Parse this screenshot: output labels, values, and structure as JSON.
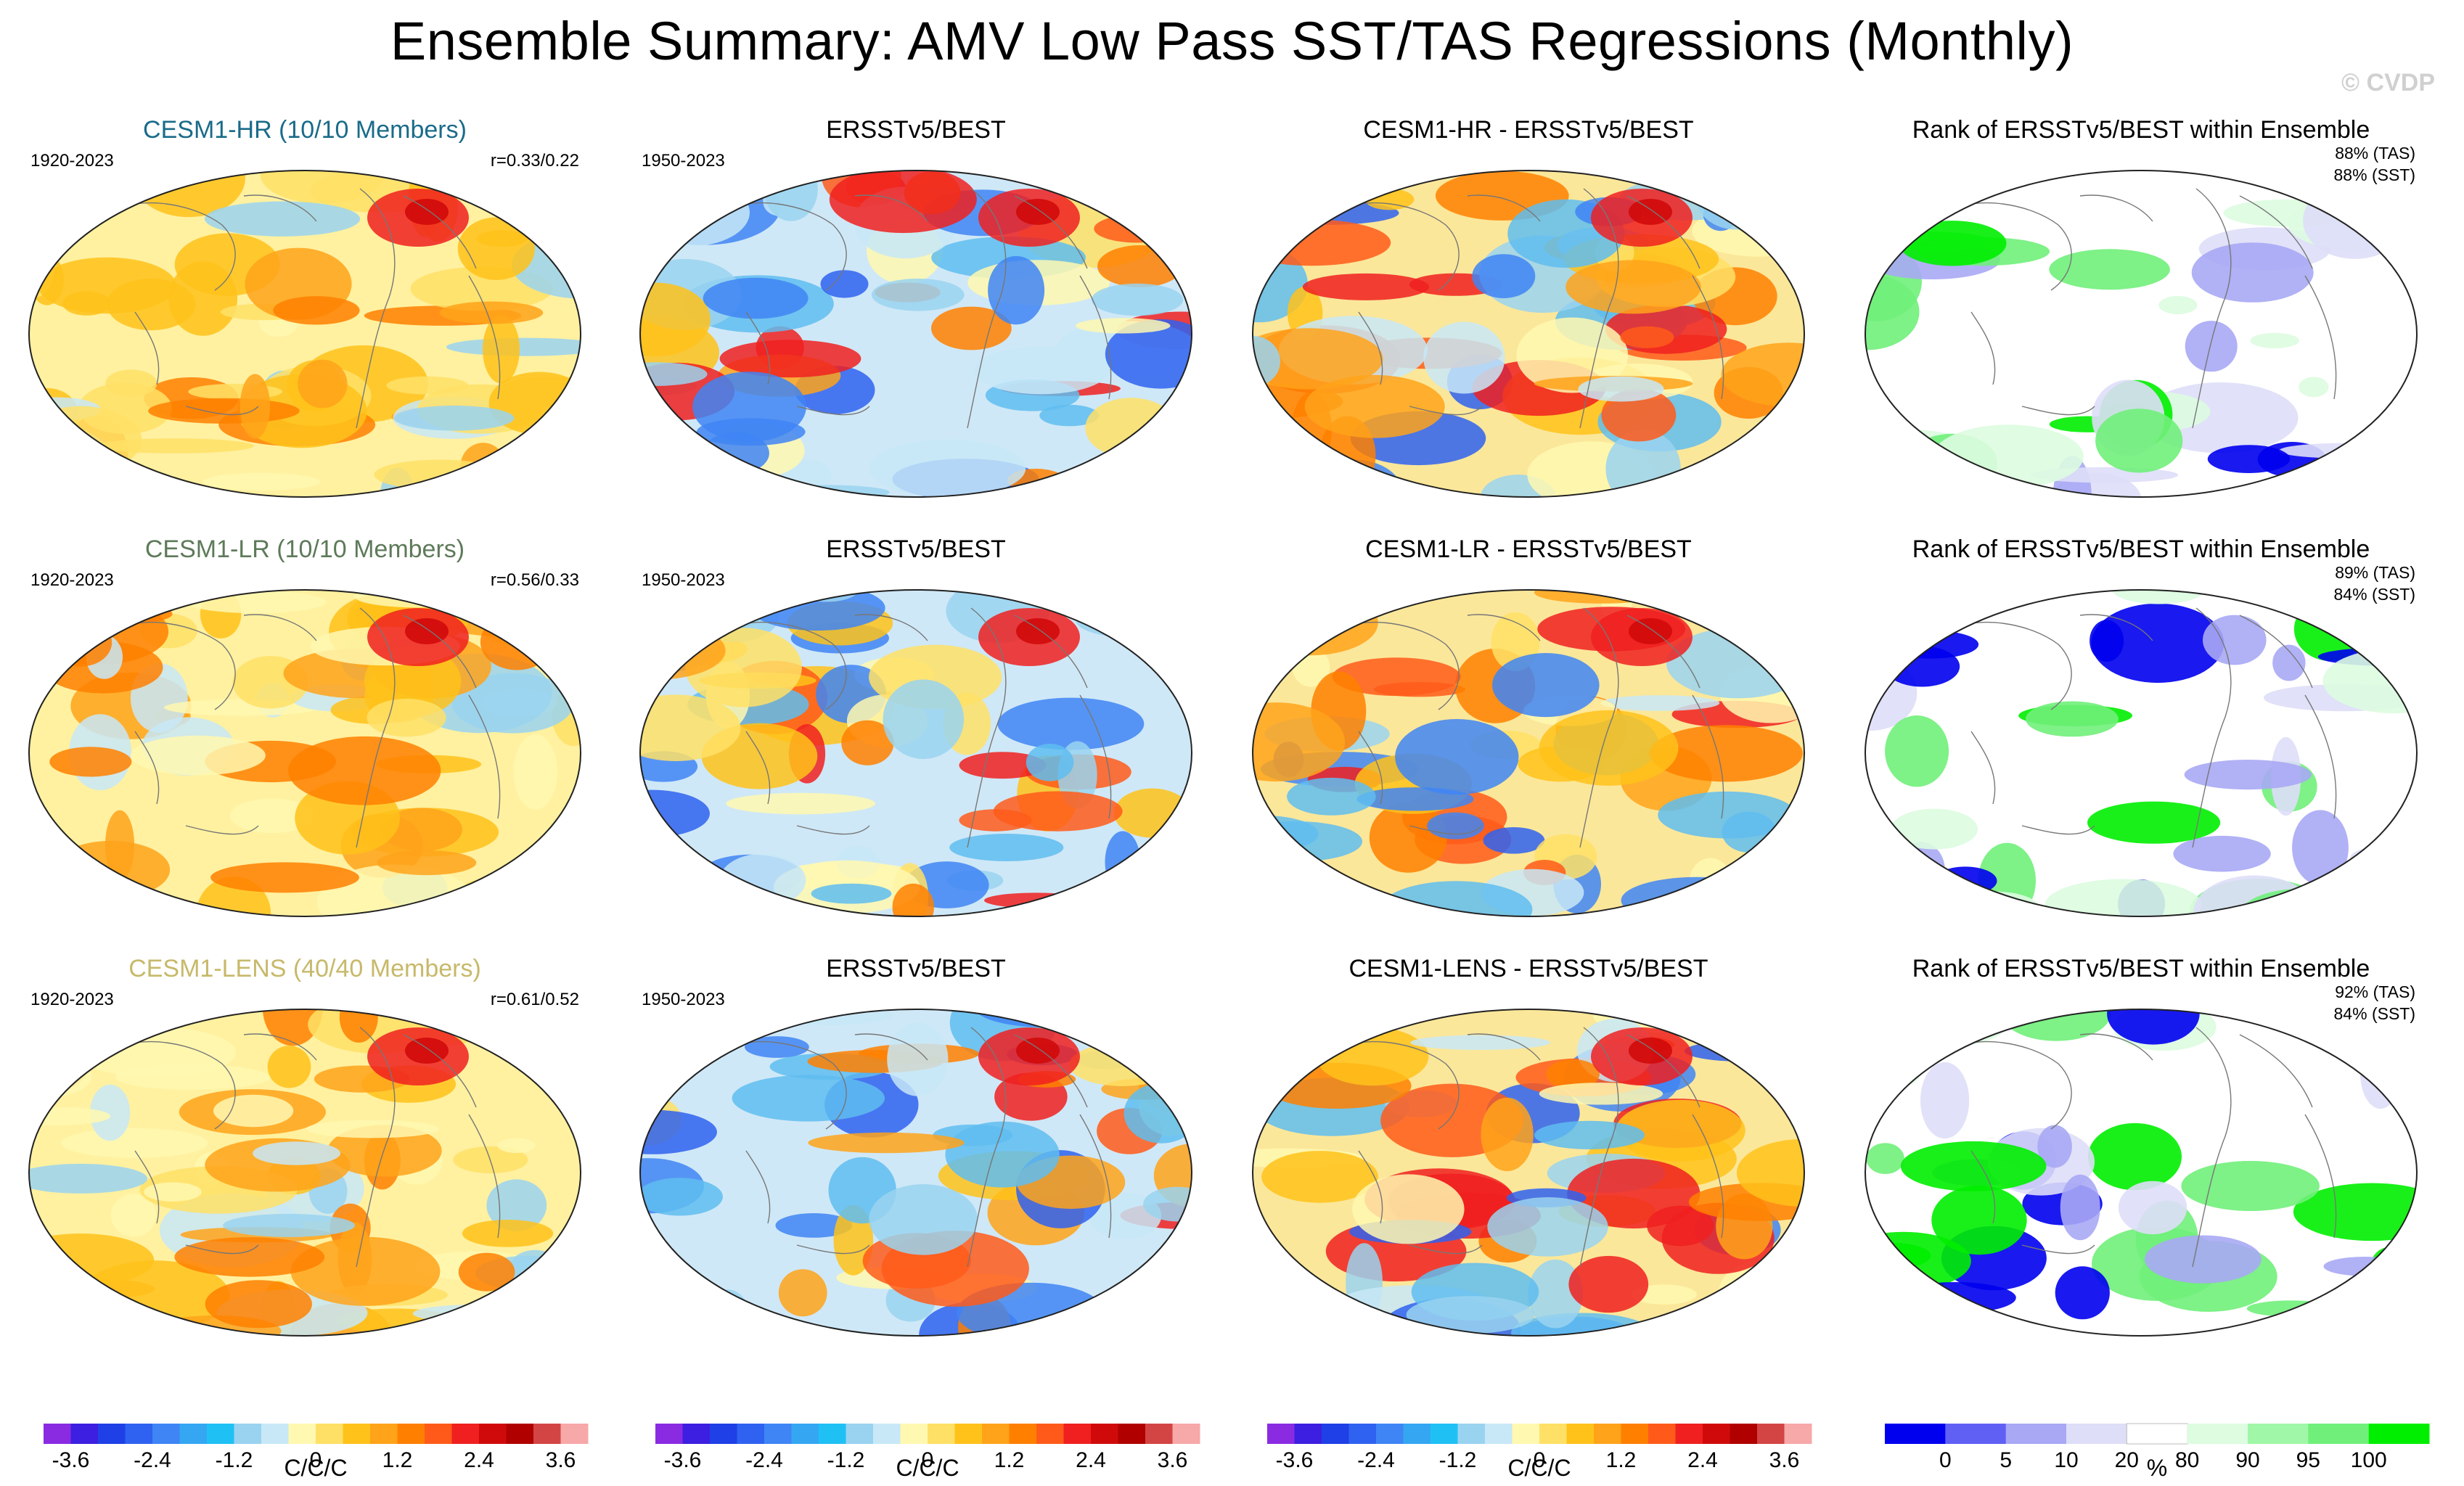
{
  "title": "Ensemble Summary: AMV Low Pass SST/TAS Regressions (Monthly)",
  "watermark": "© CVDP",
  "rows": [
    {
      "model": {
        "title": "CESM1-HR (10/10 Members)",
        "title_color": "#1a6b8a",
        "period": "1920-2023",
        "corr": "r=0.33/0.22"
      },
      "obs": {
        "title": "ERSSTv5/BEST",
        "period": "1950-2023"
      },
      "diff": {
        "title": "CESM1-HR - ERSSTv5/BEST"
      },
      "rank": {
        "title": "Rank of ERSSTv5/BEST within Ensemble",
        "tas": "88% (TAS)",
        "sst": "88% (SST)"
      }
    },
    {
      "model": {
        "title": "CESM1-LR (10/10 Members)",
        "title_color": "#5e7a5a",
        "period": "1920-2023",
        "corr": "r=0.56/0.33"
      },
      "obs": {
        "title": "ERSSTv5/BEST",
        "period": "1950-2023"
      },
      "diff": {
        "title": "CESM1-LR - ERSSTv5/BEST"
      },
      "rank": {
        "title": "Rank of ERSSTv5/BEST within Ensemble",
        "tas": "89% (TAS)",
        "sst": "84% (SST)"
      }
    },
    {
      "model": {
        "title": "CESM1-LENS (40/40 Members)",
        "title_color": "#c7b96a",
        "period": "1920-2023",
        "corr": "r=0.61/0.52"
      },
      "obs": {
        "title": "ERSSTv5/BEST",
        "period": "1950-2023"
      },
      "diff": {
        "title": "CESM1-LENS - ERSSTv5/BEST"
      },
      "rank": {
        "title": "Rank of ERSSTv5/BEST within Ensemble",
        "tas": "92% (TAS)",
        "sst": "84% (SST)"
      }
    }
  ],
  "colorbar_regression": {
    "label": "C/C/C",
    "ticks": [
      "-3.6",
      "-2.4",
      "-1.2",
      "0",
      "1.2",
      "2.4",
      "3.6"
    ],
    "colors": [
      "#8a2be2",
      "#3c1fe0",
      "#1f40e6",
      "#2f62f0",
      "#3f85f5",
      "#35a7f2",
      "#1fc1f5",
      "#9ad3f0",
      "#c8e8f7",
      "#fff8b0",
      "#ffe066",
      "#ffc21a",
      "#ffa31a",
      "#ff8000",
      "#ff5a1a",
      "#f02020",
      "#d00a0a",
      "#b00000",
      "#d34545",
      "#f7a8a8"
    ]
  },
  "colorbar_rank": {
    "label": "%",
    "ticks": [
      "0",
      "5",
      "10",
      "20",
      "80",
      "90",
      "95",
      "100"
    ],
    "colors": [
      "#0000ee",
      "#6060f5",
      "#a8a8f5",
      "#dedef8",
      "#ffffff",
      "#ddfce0",
      "#a0f7a8",
      "#70f07a",
      "#00ee00"
    ]
  }
}
